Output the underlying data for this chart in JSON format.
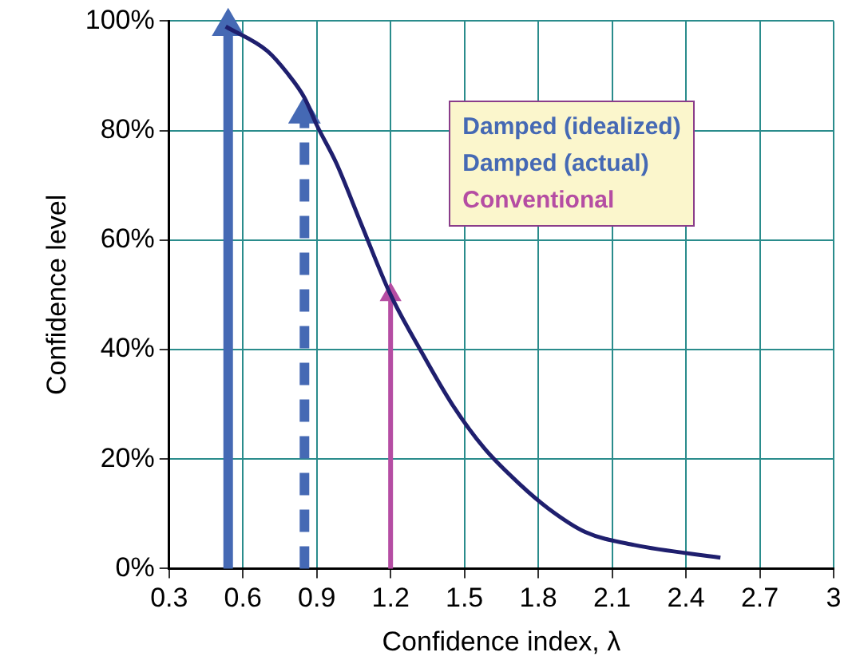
{
  "chart_data": {
    "type": "line",
    "xlabel": "Confidence index, λ",
    "ylabel": "Confidence level",
    "xlim": [
      0.3,
      3
    ],
    "xticks": [
      0.3,
      0.6,
      0.9,
      1.2,
      1.5,
      1.8,
      2.1,
      2.4,
      2.7,
      3
    ],
    "ylim": [
      0,
      100
    ],
    "yticks": [
      {
        "value": 0,
        "label": "0%"
      },
      {
        "value": 20,
        "label": "20%"
      },
      {
        "value": 40,
        "label": "40%"
      },
      {
        "value": 60,
        "label": "60%"
      },
      {
        "value": 80,
        "label": "80%"
      },
      {
        "value": 100,
        "label": "100%"
      }
    ],
    "grid": true,
    "legend": "top right",
    "marker": "none",
    "series": [
      {
        "color": "#1f1f6e",
        "line_style": "solid",
        "x": [
          0.53,
          0.7,
          0.78,
          0.85,
          0.9,
          0.98,
          1.08,
          1.2,
          1.32,
          1.45,
          1.58,
          1.72,
          1.84,
          1.99,
          2.19,
          2.54
        ],
        "values": [
          99,
          94.5,
          90.5,
          86,
          81,
          74,
          63,
          50,
          40,
          30,
          22,
          15.6,
          11,
          6.7,
          4.3,
          2
        ]
      },
      {
        "name": "Damped (idealized)",
        "color": "#4569b4",
        "line_style": "solid",
        "marker": "triangle",
        "x": [
          0.54,
          0.54
        ],
        "values": [
          0,
          99
        ]
      },
      {
        "name": "Damped (actual)",
        "color": "#4569b4",
        "line_style": "dashed",
        "marker": "triangle",
        "x": [
          0.85,
          0.85
        ],
        "values": [
          0,
          83
        ]
      },
      {
        "name": "Conventional",
        "color": "#b54da3",
        "line_style": "solid",
        "marker": "triangle",
        "x": [
          1.2,
          1.2
        ],
        "values": [
          0,
          50
        ]
      }
    ]
  }
}
